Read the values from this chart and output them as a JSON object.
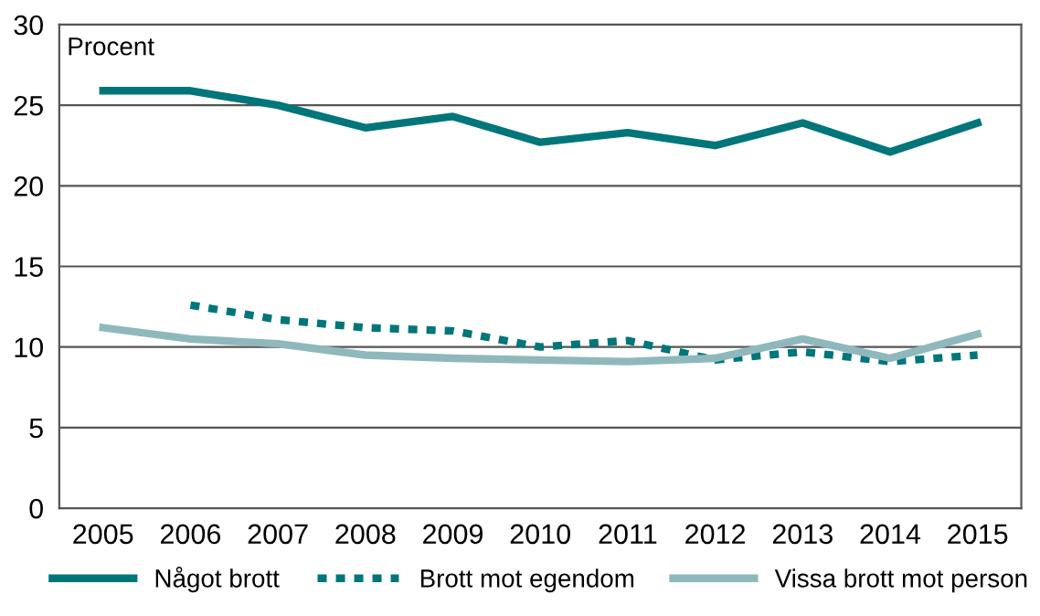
{
  "chart_data": {
    "type": "line",
    "ylabel": "Procent",
    "categories": [
      "2005",
      "2006",
      "2007",
      "2008",
      "2009",
      "2010",
      "2011",
      "2012",
      "2013",
      "2014",
      "2015"
    ],
    "series": [
      {
        "name": "Något brott",
        "color": "#00767a",
        "line_style": "solid",
        "values": [
          25.9,
          25.9,
          25.0,
          23.6,
          24.3,
          22.7,
          23.3,
          22.5,
          23.9,
          22.1,
          23.9
        ]
      },
      {
        "name": "Brott mot egendom",
        "color": "#00767a",
        "line_style": "dotted",
        "values": [
          null,
          12.6,
          11.7,
          11.2,
          11.0,
          10.0,
          10.4,
          9.2,
          9.7,
          9.1,
          9.5
        ]
      },
      {
        "name": "Vissa brott mot person",
        "color": "#8fb8bd",
        "line_style": "solid",
        "values": [
          11.2,
          10.5,
          10.2,
          9.5,
          9.3,
          9.2,
          9.1,
          9.3,
          10.5,
          9.3,
          10.8
        ]
      }
    ],
    "ylim": [
      0,
      30
    ],
    "yticks": [
      0,
      5,
      10,
      15,
      20,
      25,
      30
    ],
    "grid": "y",
    "legend": "bottom"
  }
}
